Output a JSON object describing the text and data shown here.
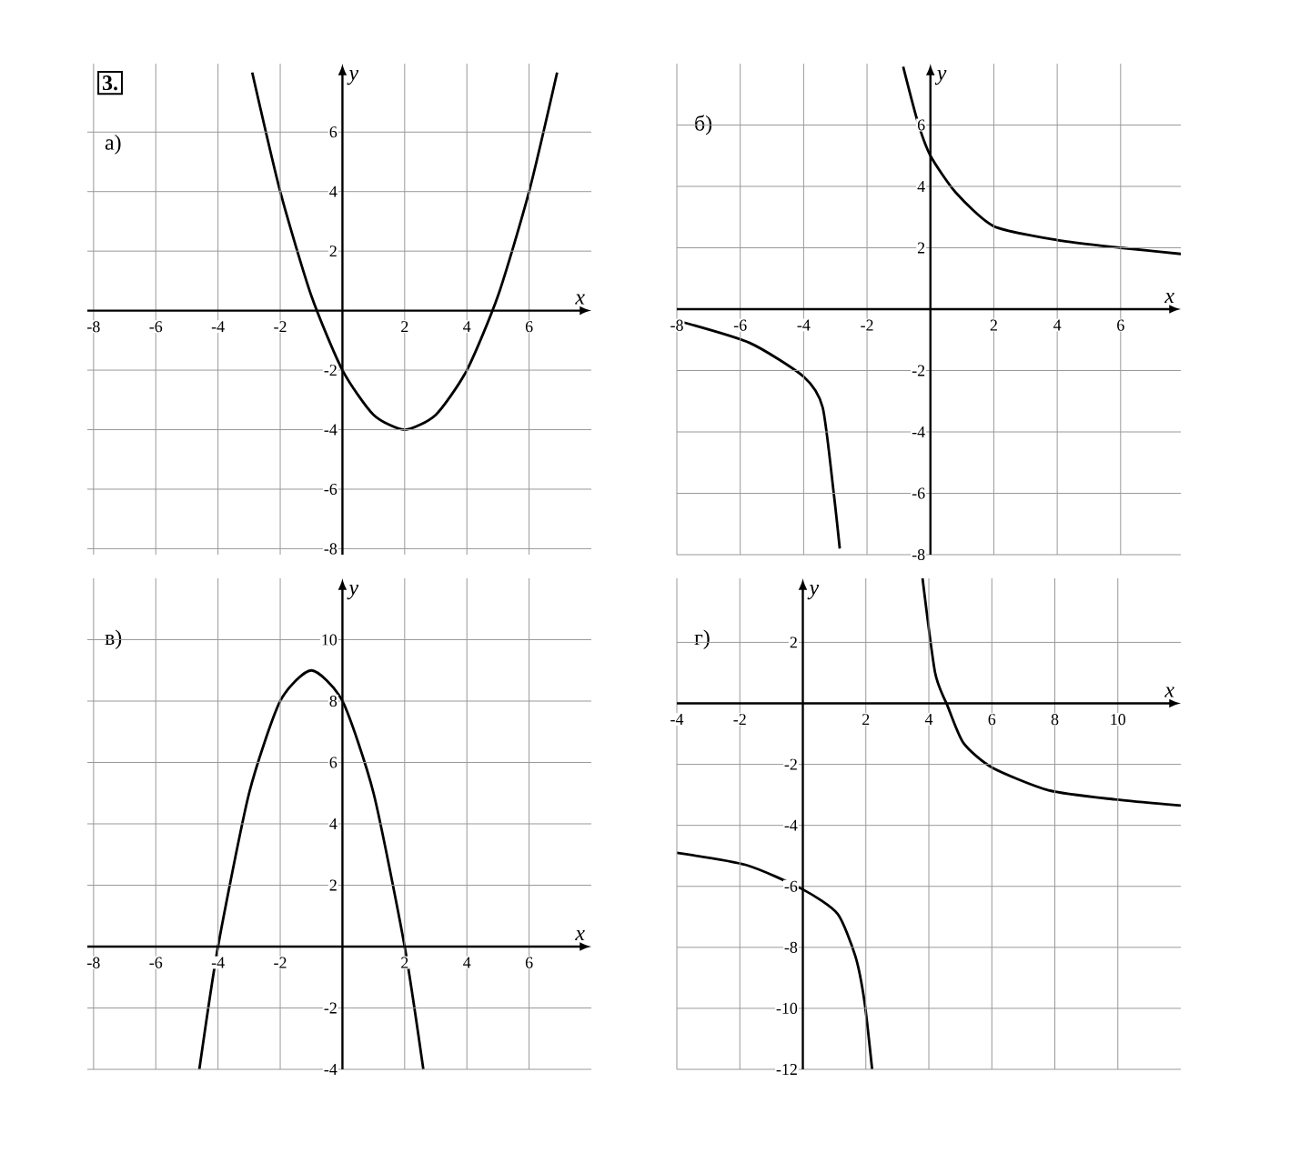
{
  "chart_data": [
    {
      "type": "line",
      "title": "а)",
      "annotations": [
        "3."
      ],
      "xlabel": "x",
      "ylabel": "y",
      "xlim": [
        -8.2,
        8
      ],
      "ylim": [
        -8.2,
        8.3
      ],
      "xticks": [
        -8,
        -6,
        -4,
        -2,
        2,
        4,
        6
      ],
      "yticks": [
        -8,
        -6,
        -4,
        -2,
        2,
        4,
        6
      ],
      "grid": true,
      "marker": "none",
      "line_style": "solid",
      "series": [
        {
          "color": "#000000",
          "x": [
            -2.9,
            -2,
            -1,
            0,
            1,
            2,
            3,
            4,
            5,
            6,
            6.9
          ],
          "values": [
            8,
            4,
            0.5,
            -2,
            -3.5,
            -4,
            -3.5,
            -2,
            0.5,
            4,
            8
          ]
        }
      ]
    },
    {
      "type": "line",
      "title": "б)",
      "xlabel": "x",
      "ylabel": "y",
      "xlim": [
        -8,
        7.9
      ],
      "ylim": [
        -8,
        8
      ],
      "xticks": [
        -8,
        -6,
        -4,
        -2,
        2,
        4,
        6
      ],
      "yticks": [
        -8,
        -6,
        -4,
        -2,
        2,
        4,
        6
      ],
      "grid": true,
      "marker": "none",
      "line_style": "solid",
      "series": [
        {
          "color": "#000000",
          "x": [
            -0.86,
            -0.4,
            0,
            0.8,
            2,
            4,
            6,
            7.9
          ],
          "values": [
            7.9,
            6.1,
            5,
            3.8,
            2.7,
            2.25,
            2,
            1.8
          ]
        },
        {
          "color": "#000000",
          "x": [
            -7.9,
            -5.7,
            -4,
            -3.4,
            -3.05,
            -2.86
          ],
          "values": [
            -0.4,
            -1.1,
            -2.2,
            -3.2,
            -6,
            -7.8
          ]
        }
      ]
    },
    {
      "type": "line",
      "title": "в)",
      "xlabel": "x",
      "ylabel": "y",
      "xlim": [
        -8.2,
        8
      ],
      "ylim": [
        -4,
        12
      ],
      "xticks": [
        -8,
        -6,
        -4,
        -2,
        2,
        4,
        6
      ],
      "yticks": [
        -4,
        -2,
        2,
        4,
        6,
        8,
        10
      ],
      "grid": true,
      "marker": "none",
      "line_style": "solid",
      "series": [
        {
          "color": "#000000",
          "x": [
            -4.6,
            -4,
            -3,
            -2,
            -1,
            0,
            1,
            2,
            2.6
          ],
          "values": [
            -4,
            0,
            5,
            8,
            9,
            8,
            5,
            0,
            -4
          ]
        }
      ]
    },
    {
      "type": "line",
      "title": "г)",
      "xlabel": "x",
      "ylabel": "y",
      "xlim": [
        -4,
        12
      ],
      "ylim": [
        -12,
        4.1
      ],
      "xticks": [
        -4,
        -2,
        2,
        4,
        6,
        8,
        10
      ],
      "yticks": [
        -12,
        -10,
        -8,
        -6,
        -4,
        -2,
        2
      ],
      "grid": true,
      "marker": "none",
      "line_style": "solid",
      "series": [
        {
          "color": "#000000",
          "x": [
            3.8,
            4.2,
            4.6,
            5.1,
            6,
            7.8,
            9.9,
            12
          ],
          "values": [
            4.1,
            1,
            -0.1,
            -1.3,
            -2.1,
            -2.85,
            -3.15,
            -3.35
          ]
        },
        {
          "color": "#000000",
          "x": [
            -4,
            -1.8,
            0,
            1.1,
            1.67,
            1.96,
            2.2
          ],
          "values": [
            -4.9,
            -5.3,
            -6.1,
            -6.9,
            -8.3,
            -9.8,
            -12
          ]
        }
      ]
    }
  ]
}
